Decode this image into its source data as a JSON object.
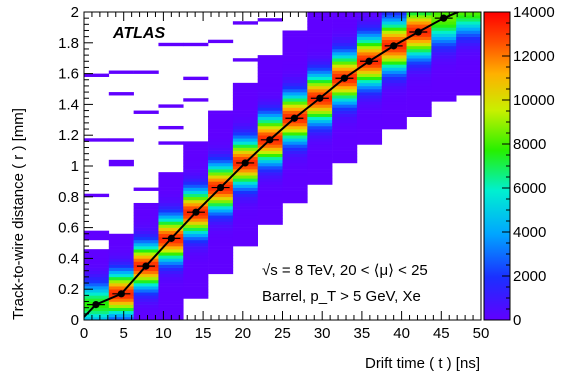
{
  "chart_data": {
    "type": "heatmap",
    "experiment_label": "ATLAS",
    "xlabel": "Drift time ( t ) [ns]",
    "ylabel": "Track-to-wire distance ( r ) [mm]",
    "xlim": [
      0,
      50
    ],
    "ylim": [
      0,
      2
    ],
    "x_ticks": [
      "0",
      "5",
      "10",
      "15",
      "20",
      "25",
      "30",
      "35",
      "40",
      "45",
      "50"
    ],
    "y_ticks": [
      "0",
      "0.2",
      "0.4",
      "0.6",
      "0.8",
      "1",
      "1.2",
      "1.4",
      "1.6",
      "1.8",
      "2"
    ],
    "colorbar": {
      "min": 0,
      "max": 14000,
      "ticks": [
        "0",
        "2000",
        "4000",
        "6000",
        "8000",
        "10000",
        "12000",
        "14000"
      ]
    },
    "annotations": [
      "√s = 8 TeV, 20 < ⟨μ⟩ < 25",
      "Barrel, p_T > 5 GeV, Xe"
    ],
    "rt_points": {
      "x": [
        1.5,
        4.7,
        7.8,
        11.0,
        14.1,
        17.2,
        20.3,
        23.4,
        26.5,
        29.7,
        32.8,
        35.9,
        39.0,
        42.1,
        45.3
      ],
      "y": [
        0.1,
        0.17,
        0.35,
        0.53,
        0.7,
        0.86,
        1.02,
        1.17,
        1.31,
        1.44,
        1.57,
        1.68,
        1.78,
        1.87,
        1.96
      ]
    },
    "rt_fit": {
      "x": [
        0,
        1.5,
        4.7,
        7.8,
        11.0,
        14.1,
        17.2,
        20.3,
        23.4,
        26.5,
        29.7,
        32.8,
        35.9,
        39.0,
        42.1,
        45.3,
        48.0
      ],
      "y": [
        0.02,
        0.1,
        0.17,
        0.35,
        0.53,
        0.7,
        0.86,
        1.02,
        1.17,
        1.31,
        1.44,
        1.57,
        1.68,
        1.78,
        1.87,
        1.96,
        2.02
      ]
    }
  }
}
